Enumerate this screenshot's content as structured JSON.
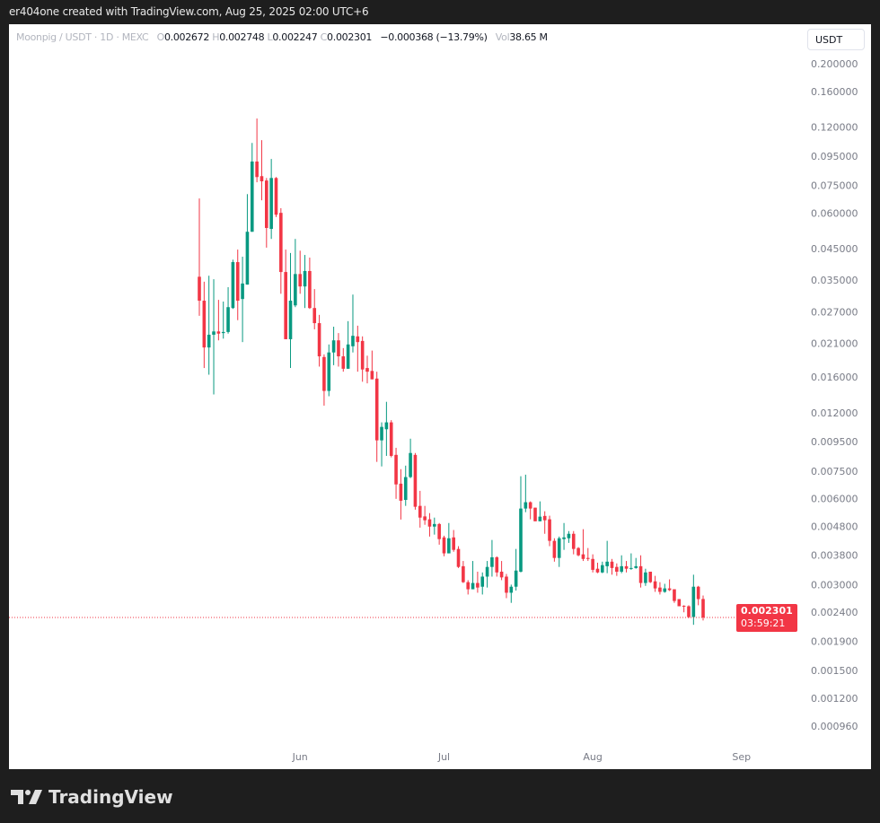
{
  "header": {
    "attribution": "er404one created with TradingView.com, Aug 25, 2025 02:00 UTC+6"
  },
  "legend": {
    "symbol": "Moonpig / USDT · 1D · MEXC",
    "open_label": "O",
    "open": "0.002672",
    "high_label": "H",
    "high": "0.002748",
    "low_label": "L",
    "low": "0.002247",
    "close_label": "C",
    "close": "0.002301",
    "change": "−0.000368 (−13.79%)",
    "vol_label": "Vol",
    "vol": "38.65 M"
  },
  "currency_button": "USDT",
  "price_label": {
    "price": "0.002301",
    "countdown": "03:59:21"
  },
  "footer": {
    "brand": "TradingView"
  },
  "colors": {
    "up": "#089981",
    "down": "#f23645",
    "background": "#1e1e1e",
    "chart_bg": "#ffffff"
  },
  "chart_data": {
    "type": "candlestick",
    "y_scale": "log",
    "grid": false,
    "y_ticks": [
      "0.200000",
      "0.160000",
      "0.120000",
      "0.095000",
      "0.075000",
      "0.060000",
      "0.045000",
      "0.035000",
      "0.027000",
      "0.021000",
      "0.016000",
      "0.012000",
      "0.009500",
      "0.007500",
      "0.006000",
      "0.004800",
      "0.003800",
      "0.003000",
      "0.002400",
      "0.001900",
      "0.001500",
      "0.001200",
      "0.000960"
    ],
    "x_ticks": [
      {
        "label": "Jun",
        "date": "2025-06-01"
      },
      {
        "label": "Jul",
        "date": "2025-07-01"
      },
      {
        "label": "Aug",
        "date": "2025-08-01"
      },
      {
        "label": "Sep",
        "date": "2025-09-01"
      }
    ],
    "last_price": 0.002301,
    "columns": [
      "date",
      "open",
      "high",
      "low",
      "close"
    ],
    "candles": [
      [
        "2025-05-11",
        0.0359,
        0.0675,
        0.0262,
        0.0296
      ],
      [
        "2025-05-12",
        0.0296,
        0.0345,
        0.0172,
        0.0203
      ],
      [
        "2025-05-13",
        0.0203,
        0.0362,
        0.0163,
        0.0225
      ],
      [
        "2025-05-14",
        0.0225,
        0.0352,
        0.0139,
        0.0231
      ],
      [
        "2025-05-15",
        0.0231,
        0.0298,
        0.0215,
        0.0227
      ],
      [
        "2025-05-16",
        0.0228,
        0.0294,
        0.0218,
        0.023
      ],
      [
        "2025-05-17",
        0.023,
        0.033,
        0.0227,
        0.0281
      ],
      [
        "2025-05-18",
        0.0279,
        0.0412,
        0.0277,
        0.0404
      ],
      [
        "2025-05-19",
        0.0404,
        0.0447,
        0.0253,
        0.0296
      ],
      [
        "2025-05-20",
        0.03,
        0.0422,
        0.0212,
        0.034
      ],
      [
        "2025-05-21",
        0.0337,
        0.0699,
        0.0337,
        0.0516
      ],
      [
        "2025-05-22",
        0.0516,
        0.1056,
        0.0516,
        0.0909
      ],
      [
        "2025-05-23",
        0.0909,
        0.1286,
        0.0769,
        0.0802
      ],
      [
        "2025-05-24",
        0.0808,
        0.108,
        0.0665,
        0.0775
      ],
      [
        "2025-05-25",
        0.078,
        0.0796,
        0.0454,
        0.0532
      ],
      [
        "2025-05-26",
        0.0528,
        0.0928,
        0.0487,
        0.0796
      ],
      [
        "2025-05-27",
        0.0796,
        0.0802,
        0.0581,
        0.0592
      ],
      [
        "2025-05-28",
        0.0601,
        0.0624,
        0.0313,
        0.0373
      ],
      [
        "2025-05-29",
        0.0373,
        0.0447,
        0.0217,
        0.0217
      ],
      [
        "2025-05-30",
        0.0217,
        0.0435,
        0.0172,
        0.0296
      ],
      [
        "2025-05-31",
        0.0285,
        0.0487,
        0.0281,
        0.0367
      ],
      [
        "2025-06-01",
        0.0367,
        0.0443,
        0.0313,
        0.0332
      ],
      [
        "2025-06-02",
        0.0332,
        0.0428,
        0.0279,
        0.0376
      ],
      [
        "2025-06-03",
        0.0376,
        0.0419,
        0.0277,
        0.0279
      ],
      [
        "2025-06-04",
        0.0279,
        0.0325,
        0.0235,
        0.0247
      ],
      [
        "2025-06-05",
        0.0247,
        0.0264,
        0.0174,
        0.0189
      ],
      [
        "2025-06-06",
        0.0188,
        0.0192,
        0.0127,
        0.0143
      ],
      [
        "2025-06-07",
        0.0143,
        0.0208,
        0.0137,
        0.0195
      ],
      [
        "2025-06-08",
        0.0195,
        0.024,
        0.0176,
        0.0215
      ],
      [
        "2025-06-09",
        0.0215,
        0.0228,
        0.0174,
        0.0189
      ],
      [
        "2025-06-10",
        0.0189,
        0.0202,
        0.0167,
        0.0171
      ],
      [
        "2025-06-11",
        0.0171,
        0.0251,
        0.0171,
        0.0208
      ],
      [
        "2025-06-12",
        0.0205,
        0.0311,
        0.0195,
        0.0223
      ],
      [
        "2025-06-13",
        0.0222,
        0.0242,
        0.0167,
        0.0212
      ],
      [
        "2025-06-14",
        0.0214,
        0.0222,
        0.0154,
        0.017
      ],
      [
        "2025-06-15",
        0.0172,
        0.019,
        0.0152,
        0.0167
      ],
      [
        "2025-06-16",
        0.0168,
        0.0198,
        0.0157,
        0.0157
      ],
      [
        "2025-06-17",
        0.0158,
        0.0167,
        0.00807,
        0.0096
      ],
      [
        "2025-06-18",
        0.0096,
        0.0111,
        0.00778,
        0.0107
      ],
      [
        "2025-06-19",
        0.0105,
        0.0131,
        0.00847,
        0.0111
      ],
      [
        "2025-06-20",
        0.0111,
        0.0113,
        0.00837,
        0.00847
      ],
      [
        "2025-06-21",
        0.00854,
        0.00904,
        0.00599,
        0.00673
      ],
      [
        "2025-06-22",
        0.00677,
        0.00761,
        0.00507,
        0.0059
      ],
      [
        "2025-06-23",
        0.00594,
        0.00783,
        0.00566,
        0.00714
      ],
      [
        "2025-06-24",
        0.00714,
        0.00973,
        0.00708,
        0.00867
      ],
      [
        "2025-06-25",
        0.00854,
        0.00867,
        0.00549,
        0.00562
      ],
      [
        "2025-06-26",
        0.00566,
        0.00639,
        0.00475,
        0.00515
      ],
      [
        "2025-06-27",
        0.0052,
        0.00566,
        0.00486,
        0.00504
      ],
      [
        "2025-06-28",
        0.00508,
        0.00534,
        0.00442,
        0.00479
      ],
      [
        "2025-06-29",
        0.00479,
        0.00515,
        0.00449,
        0.00489
      ],
      [
        "2025-06-30",
        0.00489,
        0.00493,
        0.00414,
        0.00433
      ],
      [
        "2025-07-01",
        0.00439,
        0.00445,
        0.00377,
        0.00386
      ],
      [
        "2025-07-02",
        0.00386,
        0.00493,
        0.00386,
        0.00436
      ],
      [
        "2025-07-03",
        0.00439,
        0.00466,
        0.00391,
        0.00397
      ],
      [
        "2025-07-04",
        0.004,
        0.00409,
        0.00343,
        0.00346
      ],
      [
        "2025-07-05",
        0.00348,
        0.00363,
        0.00304,
        0.00306
      ],
      [
        "2025-07-06",
        0.00306,
        0.00311,
        0.00277,
        0.00289
      ],
      [
        "2025-07-07",
        0.00289,
        0.00363,
        0.00289,
        0.00304
      ],
      [
        "2025-07-08",
        0.00304,
        0.00333,
        0.00281,
        0.00293
      ],
      [
        "2025-07-09",
        0.00295,
        0.00331,
        0.00277,
        0.0032
      ],
      [
        "2025-07-10",
        0.0032,
        0.00363,
        0.00293,
        0.00346
      ],
      [
        "2025-07-11",
        0.00346,
        0.0043,
        0.0032,
        0.00374
      ],
      [
        "2025-07-12",
        0.00374,
        0.00377,
        0.0032,
        0.00331
      ],
      [
        "2025-07-13",
        0.00333,
        0.00363,
        0.00311,
        0.00318
      ],
      [
        "2025-07-14",
        0.0032,
        0.00327,
        0.00269,
        0.00281
      ],
      [
        "2025-07-15",
        0.00281,
        0.003,
        0.00259,
        0.00295
      ],
      [
        "2025-07-16",
        0.00295,
        0.004,
        0.00286,
        0.00336
      ],
      [
        "2025-07-17",
        0.00333,
        0.00719,
        0.00331,
        0.00554
      ],
      [
        "2025-07-18",
        0.00554,
        0.00728,
        0.00538,
        0.00583
      ],
      [
        "2025-07-19",
        0.00583,
        0.00587,
        0.00508,
        0.00554
      ],
      [
        "2025-07-20",
        0.00558,
        0.00558,
        0.005,
        0.005
      ],
      [
        "2025-07-21",
        0.005,
        0.00587,
        0.005,
        0.00519
      ],
      [
        "2025-07-22",
        0.00522,
        0.00542,
        0.00452,
        0.00504
      ],
      [
        "2025-07-23",
        0.00508,
        0.00523,
        0.00409,
        0.00427
      ],
      [
        "2025-07-24",
        0.00427,
        0.00436,
        0.00361,
        0.00372
      ],
      [
        "2025-07-25",
        0.00372,
        0.00442,
        0.00346,
        0.00436
      ],
      [
        "2025-07-26",
        0.00433,
        0.00493,
        0.00397,
        0.00439
      ],
      [
        "2025-07-27",
        0.00436,
        0.00462,
        0.0042,
        0.00452
      ],
      [
        "2025-07-28",
        0.00452,
        0.00462,
        0.00383,
        0.004
      ],
      [
        "2025-07-29",
        0.00403,
        0.00406,
        0.00377,
        0.0038
      ],
      [
        "2025-07-30",
        0.00383,
        0.00469,
        0.00363,
        0.00369
      ],
      [
        "2025-07-31",
        0.00372,
        0.00403,
        0.00363,
        0.00369
      ],
      [
        "2025-08-01",
        0.00369,
        0.00383,
        0.00331,
        0.00338
      ],
      [
        "2025-08-02",
        0.00341,
        0.00358,
        0.00329,
        0.00331
      ],
      [
        "2025-08-03",
        0.00331,
        0.00361,
        0.00329,
        0.00351
      ],
      [
        "2025-08-04",
        0.00348,
        0.00427,
        0.00329,
        0.00361
      ],
      [
        "2025-08-05",
        0.00361,
        0.00369,
        0.00325,
        0.00343
      ],
      [
        "2025-08-06",
        0.00346,
        0.00356,
        0.00322,
        0.00333
      ],
      [
        "2025-08-07",
        0.00333,
        0.0038,
        0.00329,
        0.00348
      ],
      [
        "2025-08-08",
        0.00348,
        0.00363,
        0.00331,
        0.00341
      ],
      [
        "2025-08-09",
        0.00341,
        0.00386,
        0.00338,
        0.00343
      ],
      [
        "2025-08-10",
        0.00343,
        0.00372,
        0.00341,
        0.00348
      ],
      [
        "2025-08-11",
        0.00348,
        0.0038,
        0.00293,
        0.00304
      ],
      [
        "2025-08-12",
        0.00304,
        0.00341,
        0.00297,
        0.00331
      ],
      [
        "2025-08-13",
        0.00333,
        0.00333,
        0.00304,
        0.00306
      ],
      [
        "2025-08-14",
        0.00308,
        0.00322,
        0.00283,
        0.00291
      ],
      [
        "2025-08-15",
        0.00293,
        0.00306,
        0.00277,
        0.00283
      ],
      [
        "2025-08-16",
        0.00283,
        0.00302,
        0.00281,
        0.00291
      ],
      [
        "2025-08-17",
        0.00291,
        0.00313,
        0.00285,
        0.00287
      ],
      [
        "2025-08-18",
        0.00289,
        0.00289,
        0.00259,
        0.00263
      ],
      [
        "2025-08-19",
        0.00267,
        0.00267,
        0.00252,
        0.00252
      ],
      [
        "2025-08-20",
        0.00253,
        0.00254,
        0.0024,
        0.00252
      ],
      [
        "2025-08-21",
        0.00252,
        0.00254,
        0.00229,
        0.00231
      ],
      [
        "2025-08-22",
        0.00231,
        0.00325,
        0.00217,
        0.00295
      ],
      [
        "2025-08-23",
        0.00295,
        0.00297,
        0.00254,
        0.00267
      ],
      [
        "2025-08-24",
        0.002672,
        0.002748,
        0.002247,
        0.002301
      ]
    ]
  }
}
